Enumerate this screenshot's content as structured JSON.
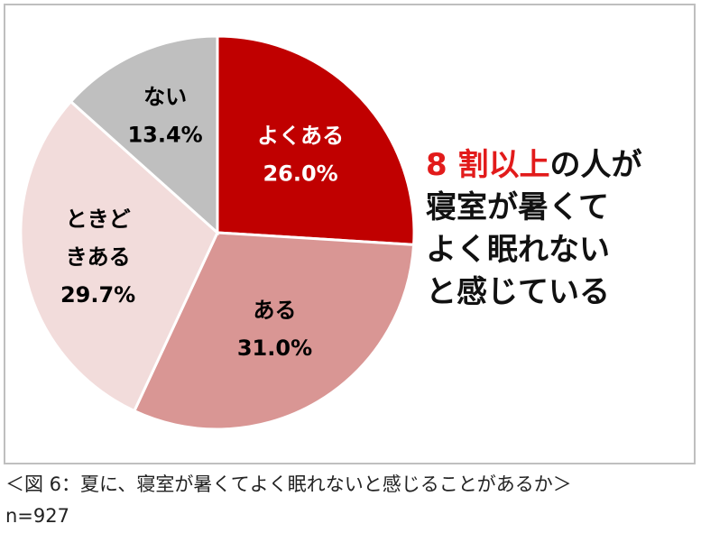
{
  "chart_data": {
    "type": "pie",
    "slices": [
      {
        "label": "よくある",
        "value": 26.0,
        "value_label": "26.0%",
        "color": "#c00000",
        "text_color": "#ffffff"
      },
      {
        "label": "ある",
        "value": 31.0,
        "value_label": "31.0%",
        "color": "#d99694",
        "text_color": "#000000"
      },
      {
        "label": "ときどきある",
        "value": 29.7,
        "value_label": "29.7%",
        "color": "#f2dcdb",
        "text_color": "#000000"
      },
      {
        "label": "ない",
        "value": 13.4,
        "value_label": "13.4%",
        "color": "#bfbfbf",
        "text_color": "#000000"
      }
    ]
  },
  "headline": {
    "accent": "8 割以上",
    "line1_rest": "の人が",
    "line2": "寝室が暑くて",
    "line3": "よく眠れない",
    "line4": "と感じている"
  },
  "caption": "＜図 6：夏に、寝室が暑くてよく眠れないと感じることがあるか＞",
  "sample": "n=927"
}
